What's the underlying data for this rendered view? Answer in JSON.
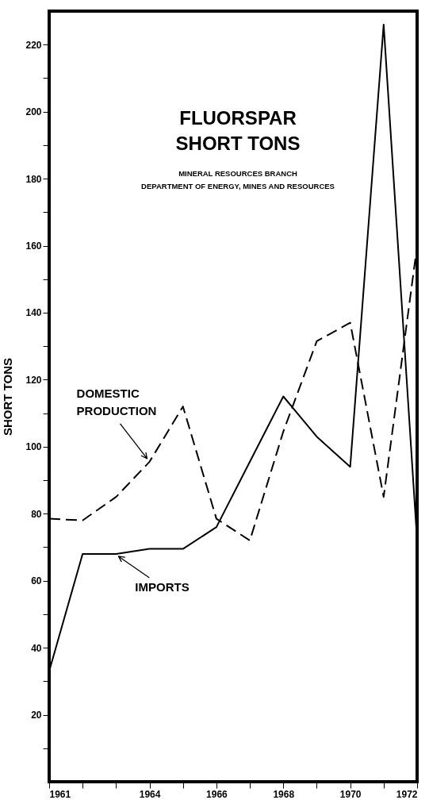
{
  "chart_data": {
    "type": "line",
    "title": "FLUORSPAR\nSHORT TONS",
    "subtitle": "MINERAL RESOURCES BRANCH\nDEPARTMENT OF ENERGY, MINES AND RESOURCES",
    "ylabel": "SHORT TONS",
    "x": [
      1961,
      1962,
      1963,
      1964,
      1965,
      1966,
      1967,
      1968,
      1969,
      1970,
      1971,
      1972
    ],
    "xlim": [
      1961,
      1972
    ],
    "ylim": [
      0,
      230
    ],
    "xticks": [
      1961,
      {
        "value": 1962,
        "label": null
      },
      {
        "value": 1963,
        "label": null
      },
      1964,
      {
        "value": 1965,
        "label": null
      },
      1966,
      {
        "value": 1967,
        "label": null
      },
      1968,
      {
        "value": 1969,
        "label": null
      },
      1970,
      {
        "value": 1971,
        "label": null
      },
      1972
    ],
    "yticks": [
      {
        "value": 10,
        "label": null
      },
      20,
      {
        "value": 30,
        "label": null
      },
      40,
      {
        "value": 50,
        "label": null
      },
      60,
      {
        "value": 70,
        "label": null
      },
      80,
      {
        "value": 90,
        "label": null
      },
      100,
      {
        "value": 110,
        "label": null
      },
      120,
      {
        "value": 130,
        "label": null
      },
      140,
      {
        "value": 150,
        "label": null
      },
      160,
      {
        "value": 170,
        "label": null
      },
      180,
      {
        "value": 190,
        "label": null
      },
      200,
      {
        "value": 210,
        "label": null
      },
      220
    ],
    "series": [
      {
        "name": "IMPORTS",
        "color": "#000000",
        "line_style": "solid",
        "values": [
          33,
          68,
          68,
          69.5,
          69.5,
          76,
          95.5,
          115,
          103,
          94,
          226,
          72
        ]
      },
      {
        "name": "DOMESTIC PRODUCTION",
        "color": "#000000",
        "line_style": "dashed",
        "values": [
          78.5,
          78,
          85,
          95.5,
          112,
          78.5,
          72,
          104.5,
          131.5,
          137,
          85,
          160
        ]
      }
    ]
  }
}
